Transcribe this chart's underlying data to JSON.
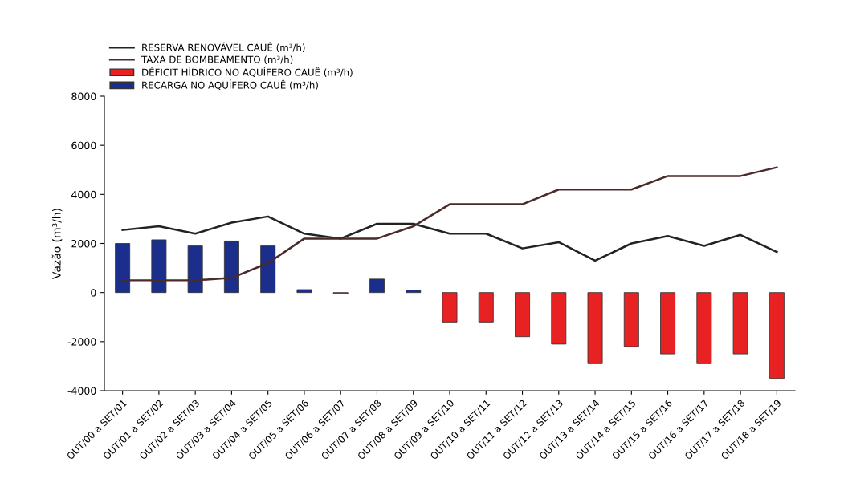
{
  "chart_data": {
    "type": "bar",
    "ylabel": "Vazão (m³/h)",
    "categories": [
      "OUT/00 a SET/01",
      "OUT/01 a SET/02",
      "OUT/02 a SET/03",
      "OUT/03 a SET/04",
      "OUT/04 a SET/05",
      "OUT/05 a SET/06",
      "OUT/06 a SET/07",
      "OUT/07 a SET/08",
      "OUT/08 a SET/09",
      "OUT/09 a SET/10",
      "OUT/10 a SET/11",
      "OUT/11 a SET/12",
      "OUT/12 a SET/13",
      "OUT/13 a SET/14",
      "OUT/14 a SET/15",
      "OUT/15 a SET/16",
      "OUT/16 a SET/17",
      "OUT/17 a SET/18",
      "OUT/18 a SET/19"
    ],
    "series": [
      {
        "name": "RESERVA RENOVÁVEL CAUÊ (m³/h)",
        "type": "line",
        "color": "#222222",
        "values": [
          2550,
          2700,
          2400,
          2850,
          3100,
          2400,
          2200,
          2800,
          2800,
          2400,
          2400,
          1800,
          2050,
          1300,
          2000,
          2300,
          1900,
          2350,
          1650
        ]
      },
      {
        "name": "TAXA DE BOMBEAMENTO (m³/h)",
        "type": "line",
        "color": "#4a2a2a",
        "values": [
          500,
          500,
          500,
          600,
          1200,
          2200,
          2200,
          2200,
          2700,
          3600,
          3600,
          3600,
          4200,
          4200,
          4200,
          4750,
          4750,
          4750,
          5100
        ]
      },
      {
        "name": "DÉFICIT HÍDRICO NO AQUÍFERO CAUÊ (m³/h)",
        "color": "#e82222",
        "values": [
          null,
          null,
          null,
          null,
          null,
          null,
          -50,
          null,
          null,
          -1200,
          -1200,
          -1800,
          -2100,
          -2900,
          -2200,
          -2500,
          -2900,
          -2500,
          -3500
        ]
      },
      {
        "name": "RECARGA NO AQUÍFERO CAUÊ (m³/h)",
        "color": "#1c2e8c",
        "values": [
          2000,
          2150,
          1900,
          2100,
          1900,
          120,
          null,
          550,
          100,
          null,
          null,
          null,
          null,
          null,
          null,
          null,
          null,
          null,
          null
        ]
      }
    ],
    "ylim": [
      -4000,
      8000
    ],
    "yticks": [
      -4000,
      -2000,
      0,
      2000,
      4000,
      6000,
      8000
    ],
    "grid": false,
    "legend": "top left",
    "marker": "none",
    "line_style": "solid"
  }
}
